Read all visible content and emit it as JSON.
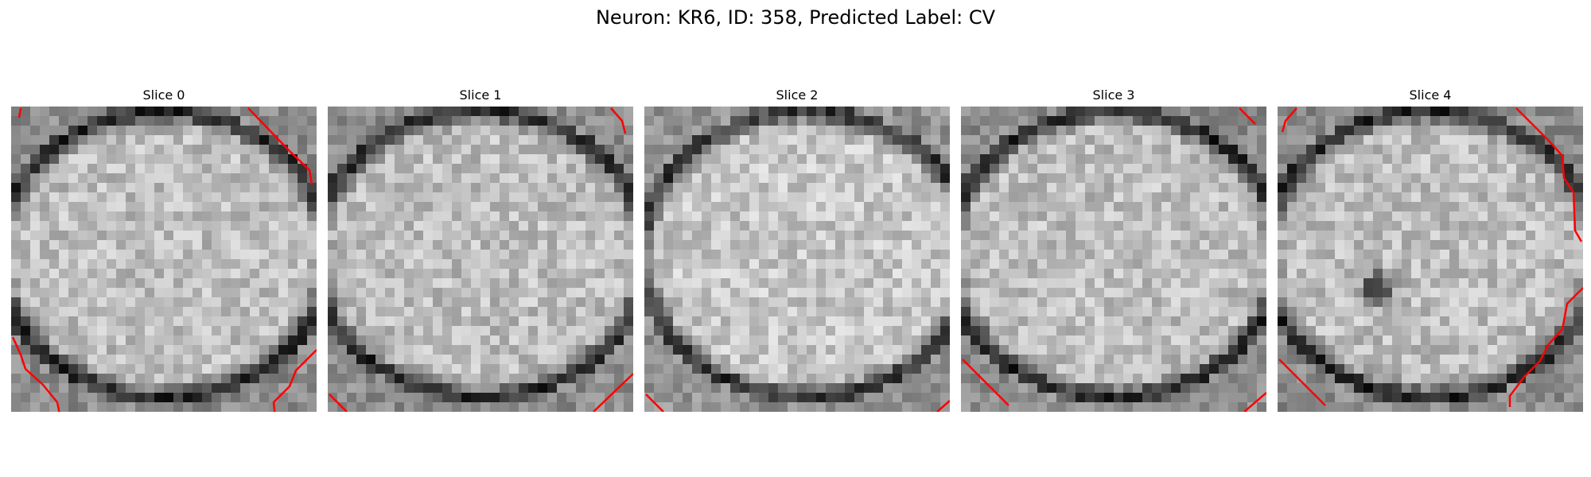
{
  "figure": {
    "title": "Neuron: KR6, ID: 358, Predicted Label: CV",
    "overlay_color": "#ff0000",
    "colormap": "gray",
    "slices": [
      {
        "title": "Slice 0",
        "seed": 11
      },
      {
        "title": "Slice 1",
        "seed": 23
      },
      {
        "title": "Slice 2",
        "seed": 37
      },
      {
        "title": "Slice 3",
        "seed": 51
      },
      {
        "title": "Slice 4",
        "seed": 67
      }
    ]
  }
}
